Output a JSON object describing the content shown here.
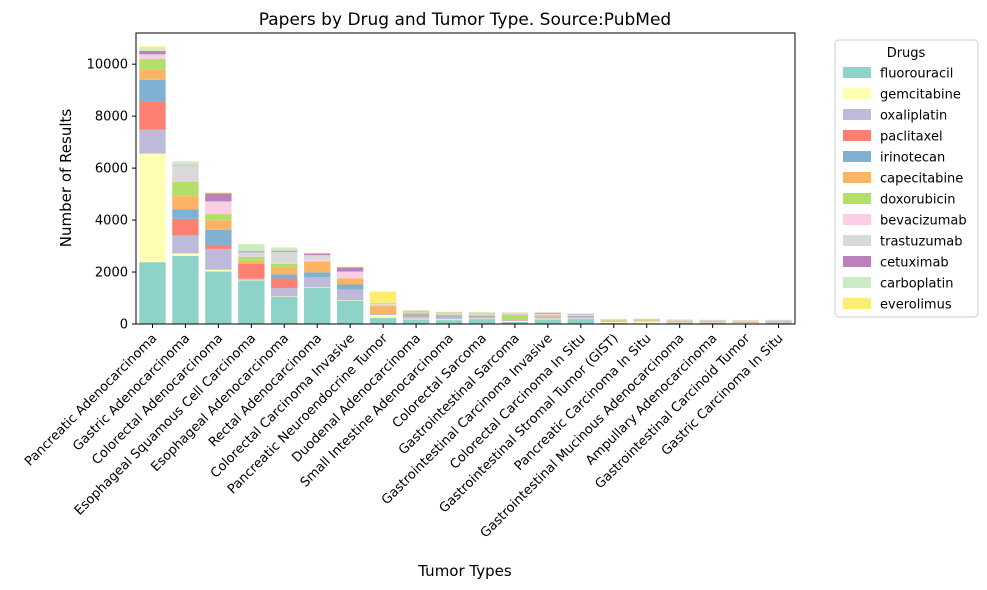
{
  "chart_data": {
    "type": "bar",
    "stacked": true,
    "title": "Papers by Drug and Tumor Type. Source:PubMed",
    "xlabel": "Tumor Types",
    "ylabel": "Number of Results",
    "ylim": [
      0,
      11200
    ],
    "yticks": [
      0,
      2000,
      4000,
      6000,
      8000,
      10000
    ],
    "grid": false,
    "legend": {
      "title": "Drugs",
      "placement": "outside-right"
    },
    "categories": [
      "Pancreatic Adenocarcinoma",
      "Gastric Adenocarcinoma",
      "Colorectal Adenocarcinoma",
      "Esophageal Squamous Cell Carcinoma",
      "Esophageal Adenocarcinoma",
      "Rectal Adenocarcinoma",
      "Colorectal Carcinoma Invasive",
      "Pancreatic Neuroendocrine Tumor",
      "Duodenal Adenocarcinoma",
      "Small Intestine Adenocarcinoma",
      "Colorectal Sarcoma",
      "Gastrointestinal Sarcoma",
      "Gastrointestinal Carcinoma Invasive",
      "Colorectal Carcinoma In Situ",
      "Gastrointestinal Stromal Tumor (GIST)",
      "Pancreatic Carcinoma In Situ",
      "Gastrointestinal Mucinous Adenocarcinoma",
      "Ampullary Adenocarcinoma",
      "Gastrointestinal Carcinoid Tumor",
      "Gastric Carcinoma In Situ"
    ],
    "series": [
      {
        "name": "fluorouracil",
        "color": "#8dd3c7",
        "values": [
          2380,
          2620,
          2020,
          1680,
          1040,
          1400,
          900,
          230,
          180,
          150,
          190,
          80,
          180,
          190,
          40,
          30,
          40,
          40,
          20,
          60
        ]
      },
      {
        "name": "gemcitabine",
        "color": "#ffffb3",
        "values": [
          4180,
          100,
          70,
          20,
          20,
          20,
          20,
          120,
          30,
          30,
          20,
          40,
          30,
          20,
          40,
          70,
          20,
          20,
          20,
          10
        ]
      },
      {
        "name": "oxaliplatin",
        "color": "#bebada",
        "values": [
          920,
          690,
          800,
          40,
          320,
          360,
          400,
          40,
          100,
          80,
          40,
          20,
          60,
          50,
          30,
          20,
          20,
          20,
          10,
          10
        ]
      },
      {
        "name": "paclitaxel",
        "color": "#fb8072",
        "values": [
          1080,
          640,
          130,
          580,
          370,
          20,
          10,
          10,
          20,
          20,
          10,
          20,
          10,
          10,
          10,
          10,
          10,
          10,
          10,
          10
        ]
      },
      {
        "name": "irinotecan",
        "color": "#80b1d3",
        "values": [
          840,
          370,
          610,
          20,
          160,
          190,
          190,
          20,
          40,
          40,
          40,
          10,
          20,
          30,
          10,
          10,
          10,
          10,
          10,
          10
        ]
      },
      {
        "name": "capecitabine",
        "color": "#fdb462",
        "values": [
          390,
          500,
          360,
          90,
          280,
          410,
          230,
          260,
          50,
          40,
          20,
          20,
          30,
          20,
          10,
          10,
          20,
          10,
          20,
          10
        ]
      },
      {
        "name": "doxorubicin",
        "color": "#b3de69",
        "values": [
          410,
          560,
          240,
          160,
          120,
          10,
          10,
          40,
          20,
          20,
          40,
          160,
          10,
          10,
          10,
          10,
          10,
          10,
          10,
          10
        ]
      },
      {
        "name": "bevacizumab",
        "color": "#fccde5",
        "values": [
          110,
          20,
          440,
          10,
          40,
          80,
          240,
          40,
          20,
          20,
          20,
          10,
          40,
          20,
          10,
          10,
          10,
          10,
          10,
          10
        ]
      },
      {
        "name": "trastuzumab",
        "color": "#d9d9d9",
        "values": [
          70,
          610,
          50,
          160,
          430,
          160,
          20,
          20,
          30,
          30,
          30,
          10,
          20,
          20,
          10,
          10,
          10,
          10,
          10,
          10
        ]
      },
      {
        "name": "cetuximab",
        "color": "#bc80bd",
        "values": [
          130,
          20,
          310,
          40,
          40,
          60,
          160,
          10,
          10,
          10,
          10,
          10,
          30,
          20,
          10,
          10,
          10,
          10,
          10,
          10
        ]
      },
      {
        "name": "carboplatin",
        "color": "#ccebc5",
        "values": [
          100,
          120,
          20,
          270,
          120,
          30,
          20,
          30,
          30,
          30,
          30,
          60,
          20,
          10,
          10,
          10,
          10,
          10,
          10,
          10
        ]
      },
      {
        "name": "everolimus",
        "color": "#ffed6f",
        "values": [
          70,
          10,
          20,
          10,
          10,
          10,
          10,
          430,
          10,
          10,
          10,
          10,
          10,
          10,
          10,
          10,
          10,
          10,
          10,
          10
        ]
      }
    ]
  }
}
